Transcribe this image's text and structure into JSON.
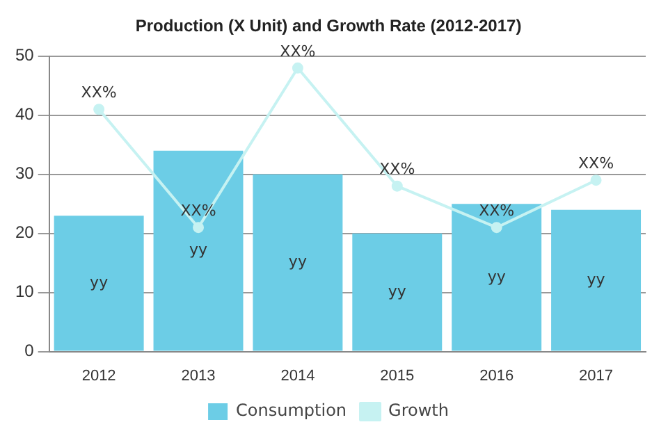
{
  "chart_data": {
    "type": "bar",
    "title": "Production (X Unit) and Growth Rate (2012-2017)",
    "categories": [
      "2012",
      "2013",
      "2014",
      "2015",
      "2016",
      "2017"
    ],
    "series": [
      {
        "name": "Consumption",
        "color": "#6ccde6",
        "values": [
          23,
          34,
          30,
          20,
          25,
          24
        ],
        "value_labels": [
          "yy",
          "yy",
          "yy",
          "yy",
          "yy",
          "yy"
        ]
      },
      {
        "name": "Growth",
        "type": "line",
        "color": "#c6f2f2",
        "values": [
          41,
          21,
          48,
          28,
          21,
          29
        ],
        "value_labels": [
          "XX%",
          "XX%",
          "XX%",
          "XX%",
          "XX%",
          "XX%"
        ]
      }
    ],
    "ylim": [
      0,
      50
    ],
    "yticks": [
      0,
      10,
      20,
      30,
      40,
      50
    ],
    "grid": "y",
    "legend": "bottom",
    "marker": "circle"
  }
}
